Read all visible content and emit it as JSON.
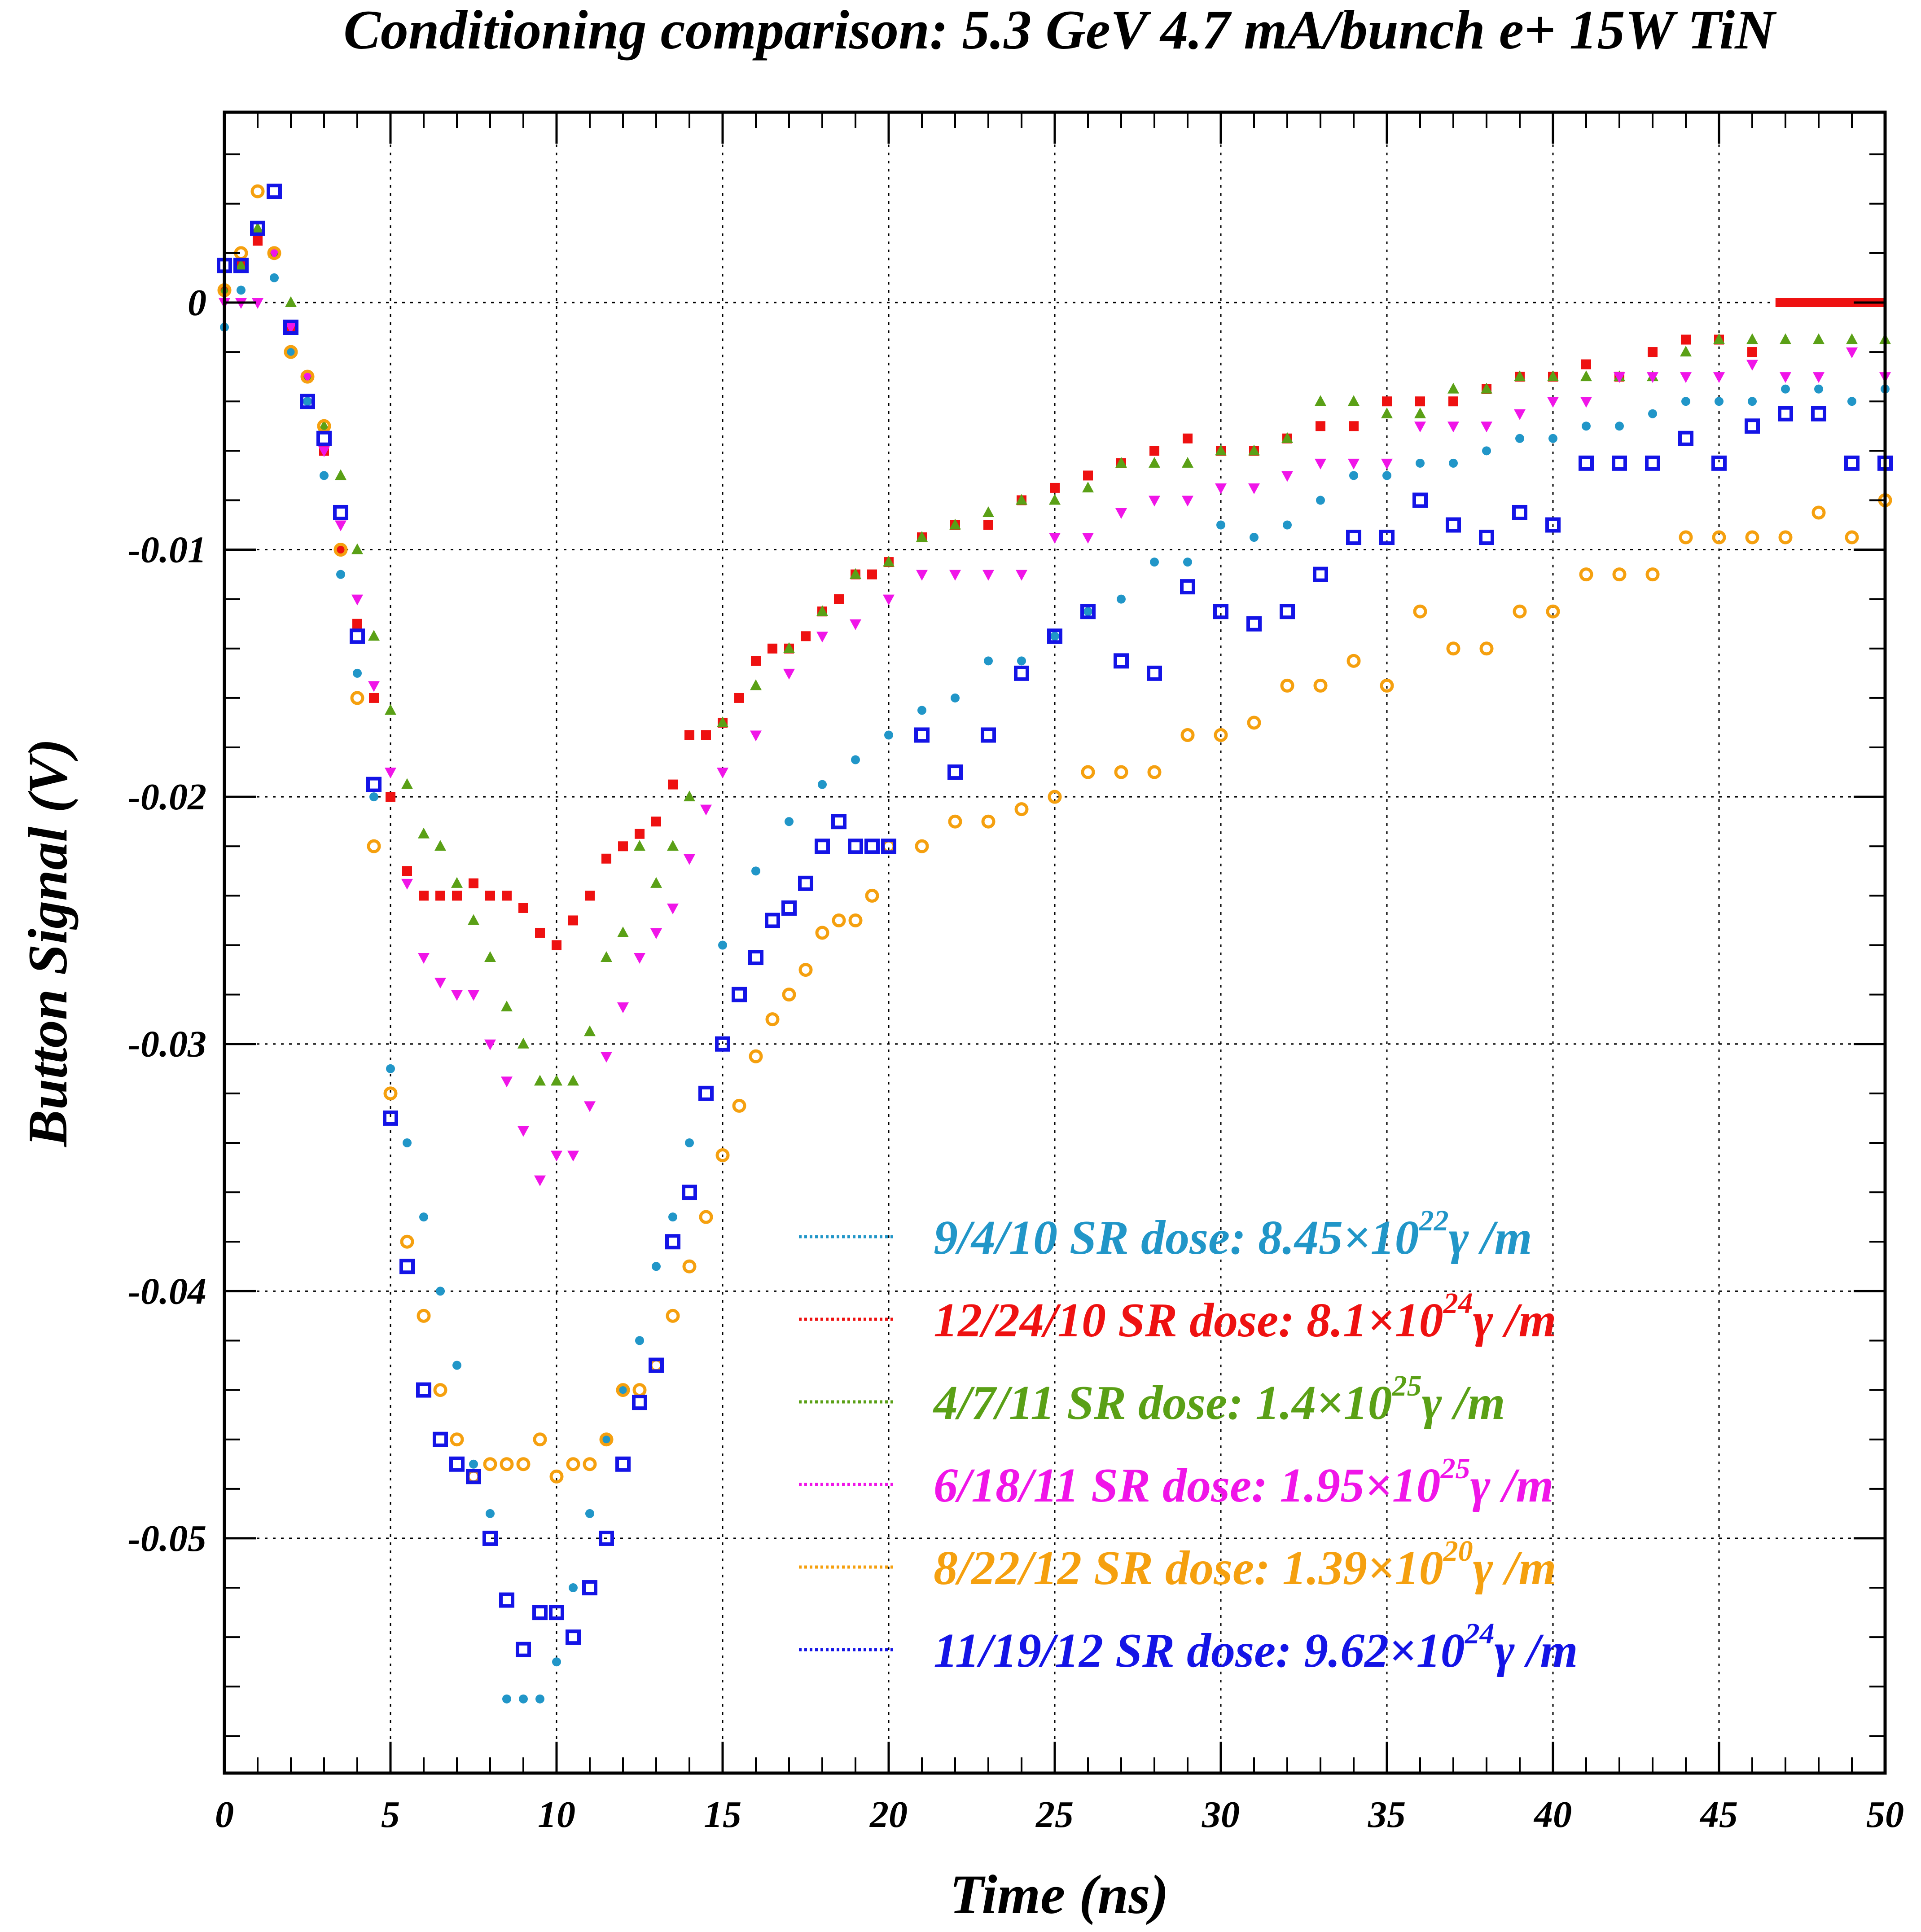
{
  "chart_data": {
    "type": "scatter",
    "title": "Conditioning comparison: 5.3 GeV 4.7 mA/bunch e+ 15W TiN",
    "xlabel": "Time (ns)",
    "ylabel": "Button Signal (V)",
    "xlim": [
      0,
      50
    ],
    "ylim": [
      -0.0595,
      0.0077
    ],
    "xticks": [
      "0",
      "5",
      "10",
      "15",
      "20",
      "25",
      "30",
      "35",
      "40",
      "45",
      "50"
    ],
    "yticks": [
      "0",
      "-0.01",
      "-0.02",
      "-0.03",
      "-0.04",
      "-0.05"
    ],
    "grid": true,
    "legend_position": "bottom-right",
    "series": [
      {
        "name": "9/4/10 SR dose: 8.45×10",
        "exponent": "22",
        "unit": "γ /m",
        "color": "#2196c8",
        "marker": "circle",
        "x": [
          0,
          0.5,
          1,
          1.5,
          2,
          2.5,
          3,
          3.5,
          4,
          4.5,
          5,
          5.5,
          6,
          6.5,
          7,
          7.5,
          8,
          8.5,
          9,
          9.5,
          10,
          10.5,
          11,
          11.5,
          12,
          12.5,
          13,
          13.5,
          14,
          15,
          16,
          17,
          18,
          19,
          20,
          21,
          22,
          23,
          24,
          25,
          26,
          27,
          28,
          29,
          30,
          31,
          32,
          33,
          34,
          35,
          36,
          37,
          38,
          39,
          40,
          41,
          42,
          43,
          44,
          45,
          46,
          47,
          48,
          49,
          50
        ],
        "y": [
          -0.001,
          0.0005,
          0.0025,
          0.001,
          -0.002,
          -0.004,
          -0.007,
          -0.011,
          -0.015,
          -0.02,
          -0.031,
          -0.034,
          -0.037,
          -0.04,
          -0.043,
          -0.047,
          -0.049,
          -0.0565,
          -0.0565,
          -0.0565,
          -0.055,
          -0.052,
          -0.049,
          -0.046,
          -0.044,
          -0.042,
          -0.039,
          -0.037,
          -0.034,
          -0.026,
          -0.023,
          -0.021,
          -0.0195,
          -0.0185,
          -0.0175,
          -0.0165,
          -0.016,
          -0.0145,
          -0.0145,
          -0.0135,
          -0.0125,
          -0.012,
          -0.0105,
          -0.0105,
          -0.009,
          -0.0095,
          -0.009,
          -0.008,
          -0.007,
          -0.007,
          -0.0065,
          -0.0065,
          -0.006,
          -0.0055,
          -0.0055,
          -0.005,
          -0.005,
          -0.0045,
          -0.004,
          -0.004,
          -0.004,
          -0.0035,
          -0.0035,
          -0.004,
          -0.0035
        ]
      },
      {
        "name": "12/24/10 SR dose: 8.1×10",
        "exponent": "24",
        "unit": "γ /m",
        "color": "#ee1111",
        "marker": "square",
        "x": [
          0,
          0.5,
          1,
          1.5,
          2,
          2.5,
          3,
          3.5,
          4,
          4.5,
          5,
          5.5,
          6,
          6.5,
          7,
          7.5,
          8,
          8.5,
          9,
          9.5,
          10,
          10.5,
          11,
          11.5,
          12,
          12.5,
          13,
          13.5,
          14,
          14.5,
          15,
          15.5,
          16,
          16.5,
          17,
          17.5,
          18,
          18.5,
          19,
          19.5,
          20,
          21,
          22,
          23,
          24,
          25,
          26,
          27,
          28,
          29,
          30,
          31,
          32,
          33,
          34,
          35,
          36,
          37,
          38,
          39,
          40,
          41,
          42,
          43,
          44,
          45,
          46
        ],
        "y": [
          0.0005,
          0.0015,
          0.0025,
          0.002,
          -0.001,
          -0.003,
          -0.006,
          -0.01,
          -0.013,
          -0.016,
          -0.02,
          -0.023,
          -0.024,
          -0.024,
          -0.024,
          -0.0235,
          -0.024,
          -0.024,
          -0.0245,
          -0.0255,
          -0.026,
          -0.025,
          -0.024,
          -0.0225,
          -0.022,
          -0.0215,
          -0.021,
          -0.0195,
          -0.0175,
          -0.0175,
          -0.017,
          -0.016,
          -0.0145,
          -0.014,
          -0.014,
          -0.0135,
          -0.0125,
          -0.012,
          -0.011,
          -0.011,
          -0.0105,
          -0.0095,
          -0.009,
          -0.009,
          -0.008,
          -0.0075,
          -0.007,
          -0.0065,
          -0.006,
          -0.0055,
          -0.006,
          -0.006,
          -0.0055,
          -0.005,
          -0.005,
          -0.004,
          -0.004,
          -0.004,
          -0.0035,
          -0.003,
          -0.003,
          -0.0025,
          -0.003,
          -0.002,
          -0.0015,
          -0.0015,
          -0.002
        ]
      },
      {
        "name": "4/7/11 SR dose: 1.4×10",
        "exponent": "25",
        "unit": "γ /m",
        "color": "#5aa016",
        "marker": "triangle-up",
        "x": [
          0,
          0.5,
          1,
          1.5,
          2,
          2.5,
          3,
          3.5,
          4,
          4.5,
          5,
          5.5,
          6,
          6.5,
          7,
          7.5,
          8,
          8.5,
          9,
          9.5,
          10,
          10.5,
          11,
          11.5,
          12,
          12.5,
          13,
          13.5,
          14,
          15,
          16,
          17,
          18,
          19,
          20,
          21,
          22,
          23,
          24,
          25,
          26,
          27,
          28,
          29,
          30,
          31,
          32,
          33,
          34,
          35,
          36,
          37,
          38,
          39,
          40,
          41,
          42,
          43,
          44,
          45,
          46,
          47,
          48,
          49,
          50
        ],
        "y": [
          0.0005,
          0.0015,
          0.003,
          0.002,
          0,
          -0.003,
          -0.005,
          -0.007,
          -0.01,
          -0.0135,
          -0.0165,
          -0.0195,
          -0.0215,
          -0.022,
          -0.0235,
          -0.025,
          -0.0265,
          -0.0285,
          -0.03,
          -0.0315,
          -0.0315,
          -0.0315,
          -0.0295,
          -0.0265,
          -0.0255,
          -0.022,
          -0.0235,
          -0.022,
          -0.02,
          -0.017,
          -0.0155,
          -0.014,
          -0.0125,
          -0.011,
          -0.0105,
          -0.0095,
          -0.009,
          -0.0085,
          -0.008,
          -0.008,
          -0.0075,
          -0.0065,
          -0.0065,
          -0.0065,
          -0.006,
          -0.006,
          -0.0055,
          -0.004,
          -0.004,
          -0.0045,
          -0.0045,
          -0.0035,
          -0.0035,
          -0.003,
          -0.003,
          -0.003,
          -0.003,
          -0.003,
          -0.002,
          -0.0015,
          -0.0015,
          -0.0015,
          -0.0015,
          -0.0015,
          -0.0015
        ]
      },
      {
        "name": "6/18/11 SR dose: 1.95×10",
        "exponent": "25",
        "unit": "γ /m",
        "color": "#f015e8",
        "marker": "triangle-down",
        "x": [
          0,
          0.5,
          1,
          1.5,
          2,
          2.5,
          3,
          3.5,
          4,
          4.5,
          5,
          5.5,
          6,
          6.5,
          7,
          7.5,
          8,
          8.5,
          9,
          9.5,
          10,
          10.5,
          11,
          11.5,
          12,
          12.5,
          13,
          13.5,
          14,
          14.5,
          15,
          16,
          17,
          18,
          19,
          20,
          21,
          22,
          23,
          24,
          25,
          26,
          27,
          28,
          29,
          30,
          31,
          32,
          33,
          34,
          35,
          36,
          37,
          38,
          39,
          40,
          41,
          42,
          43,
          44,
          45,
          46,
          47,
          48,
          49,
          50
        ],
        "y": [
          0,
          0,
          0,
          0.002,
          -0.001,
          -0.003,
          -0.006,
          -0.009,
          -0.012,
          -0.0155,
          -0.019,
          -0.0235,
          -0.0265,
          -0.0275,
          -0.028,
          -0.028,
          -0.03,
          -0.0315,
          -0.0335,
          -0.0355,
          -0.0345,
          -0.0345,
          -0.0325,
          -0.0305,
          -0.0285,
          -0.0265,
          -0.0255,
          -0.0245,
          -0.0225,
          -0.0205,
          -0.019,
          -0.0175,
          -0.015,
          -0.0135,
          -0.013,
          -0.012,
          -0.011,
          -0.011,
          -0.011,
          -0.011,
          -0.0095,
          -0.0095,
          -0.0085,
          -0.008,
          -0.008,
          -0.0075,
          -0.0075,
          -0.007,
          -0.0065,
          -0.0065,
          -0.0065,
          -0.005,
          -0.005,
          -0.005,
          -0.0045,
          -0.004,
          -0.004,
          -0.003,
          -0.003,
          -0.003,
          -0.003,
          -0.0025,
          -0.003,
          -0.003,
          -0.002,
          -0.003
        ]
      },
      {
        "name": "8/22/12 SR dose: 1.39×10",
        "exponent": "20",
        "unit": "γ /m",
        "color": "#f5a00f",
        "marker": "open-circle",
        "x": [
          0,
          0.5,
          1,
          1.5,
          2,
          2.5,
          3,
          3.5,
          4,
          4.5,
          5,
          5.5,
          6,
          6.5,
          7,
          7.5,
          8,
          8.5,
          9,
          9.5,
          10,
          10.5,
          11,
          11.5,
          12,
          12.5,
          13,
          13.5,
          14,
          14.5,
          15,
          15.5,
          16,
          16.5,
          17,
          17.5,
          18,
          18.5,
          19,
          19.5,
          20,
          21,
          22,
          23,
          24,
          25,
          26,
          27,
          28,
          29,
          30,
          31,
          32,
          33,
          34,
          35,
          36,
          37,
          38,
          39,
          40,
          41,
          42,
          43,
          44,
          45,
          46,
          47,
          48,
          49,
          50
        ],
        "y": [
          0.0005,
          0.002,
          0.0045,
          0.002,
          -0.002,
          -0.003,
          -0.005,
          -0.01,
          -0.016,
          -0.022,
          -0.032,
          -0.038,
          -0.041,
          -0.044,
          -0.046,
          -0.0475,
          -0.047,
          -0.047,
          -0.047,
          -0.046,
          -0.0475,
          -0.047,
          -0.047,
          -0.046,
          -0.044,
          -0.044,
          -0.043,
          -0.041,
          -0.039,
          -0.037,
          -0.0345,
          -0.0325,
          -0.0305,
          -0.029,
          -0.028,
          -0.027,
          -0.0255,
          -0.025,
          -0.025,
          -0.024,
          -0.022,
          -0.022,
          -0.021,
          -0.021,
          -0.0205,
          -0.02,
          -0.019,
          -0.019,
          -0.019,
          -0.0175,
          -0.0175,
          -0.017,
          -0.0155,
          -0.0155,
          -0.0145,
          -0.0155,
          -0.0125,
          -0.014,
          -0.014,
          -0.0125,
          -0.0125,
          -0.011,
          -0.011,
          -0.011,
          -0.0095,
          -0.0095,
          -0.0095,
          -0.0095,
          -0.0085,
          -0.0095,
          -0.008
        ]
      },
      {
        "name": "11/19/12 SR dose: 9.62×10",
        "exponent": "24",
        "unit": "γ /m",
        "color": "#1414e6",
        "marker": "open-square",
        "x": [
          0,
          0.5,
          1,
          1.5,
          2,
          2.5,
          3,
          3.5,
          4,
          4.5,
          5,
          5.5,
          6,
          6.5,
          7,
          7.5,
          8,
          8.5,
          9,
          9.5,
          10,
          10.5,
          11,
          11.5,
          12,
          12.5,
          13,
          13.5,
          14,
          14.5,
          15,
          15.5,
          16,
          16.5,
          17,
          17.5,
          18,
          18.5,
          19,
          19.5,
          20,
          21,
          22,
          23,
          24,
          25,
          26,
          27,
          28,
          29,
          30,
          31,
          32,
          33,
          34,
          35,
          36,
          37,
          38,
          39,
          40,
          41,
          42,
          43,
          44,
          45,
          46,
          47,
          48,
          49,
          50
        ],
        "y": [
          0.0015,
          0.0015,
          0.003,
          0.0045,
          -0.001,
          -0.004,
          -0.0055,
          -0.0085,
          -0.0135,
          -0.0195,
          -0.033,
          -0.039,
          -0.044,
          -0.046,
          -0.047,
          -0.0475,
          -0.05,
          -0.0525,
          -0.0545,
          -0.053,
          -0.053,
          -0.054,
          -0.052,
          -0.05,
          -0.047,
          -0.0445,
          -0.043,
          -0.038,
          -0.036,
          -0.032,
          -0.03,
          -0.028,
          -0.0265,
          -0.025,
          -0.0245,
          -0.0235,
          -0.022,
          -0.021,
          -0.022,
          -0.022,
          -0.022,
          -0.0175,
          -0.019,
          -0.0175,
          -0.015,
          -0.0135,
          -0.0125,
          -0.0145,
          -0.015,
          -0.0115,
          -0.0125,
          -0.013,
          -0.0125,
          -0.011,
          -0.0095,
          -0.0095,
          -0.008,
          -0.009,
          -0.0095,
          -0.0085,
          -0.009,
          -0.0065,
          -0.0065,
          -0.0065,
          -0.0055,
          -0.0065,
          -0.005,
          -0.0045,
          -0.0045,
          -0.0065,
          -0.0065
        ]
      }
    ],
    "extra_segments": [
      {
        "series": "12/24/10 SR dose: 8.1×10",
        "x_start": 46.7,
        "x_end": 50,
        "y": 0
      }
    ]
  }
}
